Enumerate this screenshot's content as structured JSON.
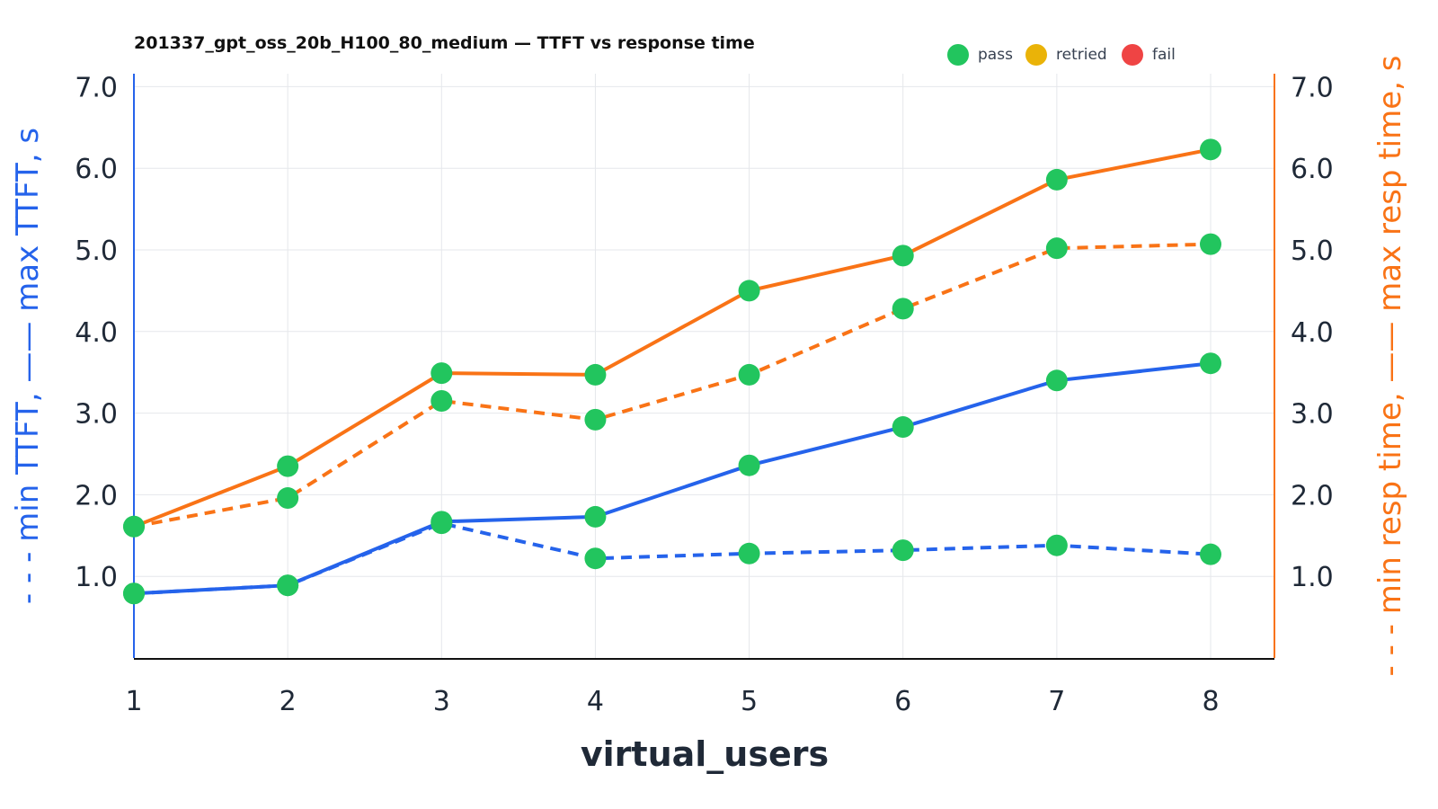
{
  "chart_data": {
    "type": "line",
    "title": "201337_gpt_oss_20b_H100_80_medium — TTFT vs response time",
    "xlabel": "virtual_users",
    "ylabel_left": "- - - min TTFT, —— max TTFT, s",
    "ylabel_right": "- - - min resp time, —— max resp time, s",
    "x": [
      1,
      2,
      3,
      4,
      5,
      6,
      7,
      8
    ],
    "ylim": [
      0,
      7.0
    ],
    "y_ticks": [
      "1.0",
      "2.0",
      "3.0",
      "4.0",
      "5.0",
      "6.0",
      "7.0"
    ],
    "grid": true,
    "legend_placement": "top-right",
    "legend": [
      {
        "label": "pass",
        "color": "#22c55e"
      },
      {
        "label": "retried",
        "color": "#eab308"
      },
      {
        "label": "fail",
        "color": "#ef4444"
      }
    ],
    "series": [
      {
        "axis": "left",
        "style": "solid",
        "color": "#2563eb",
        "values": [
          0.79,
          0.89,
          1.67,
          1.73,
          2.36,
          2.83,
          3.4,
          3.61
        ]
      },
      {
        "axis": "left",
        "style": "dashed",
        "color": "#2563eb",
        "values": [
          0.79,
          0.89,
          1.65,
          1.22,
          1.28,
          1.32,
          1.38,
          1.27
        ]
      },
      {
        "axis": "right",
        "style": "solid",
        "color": "#f97316",
        "values": [
          1.61,
          2.35,
          3.49,
          3.47,
          4.5,
          4.93,
          5.86,
          6.23
        ]
      },
      {
        "axis": "right",
        "style": "dashed",
        "color": "#f97316",
        "values": [
          1.61,
          1.96,
          3.15,
          2.92,
          3.47,
          4.28,
          5.02,
          5.07
        ]
      }
    ],
    "point_status": "pass"
  }
}
